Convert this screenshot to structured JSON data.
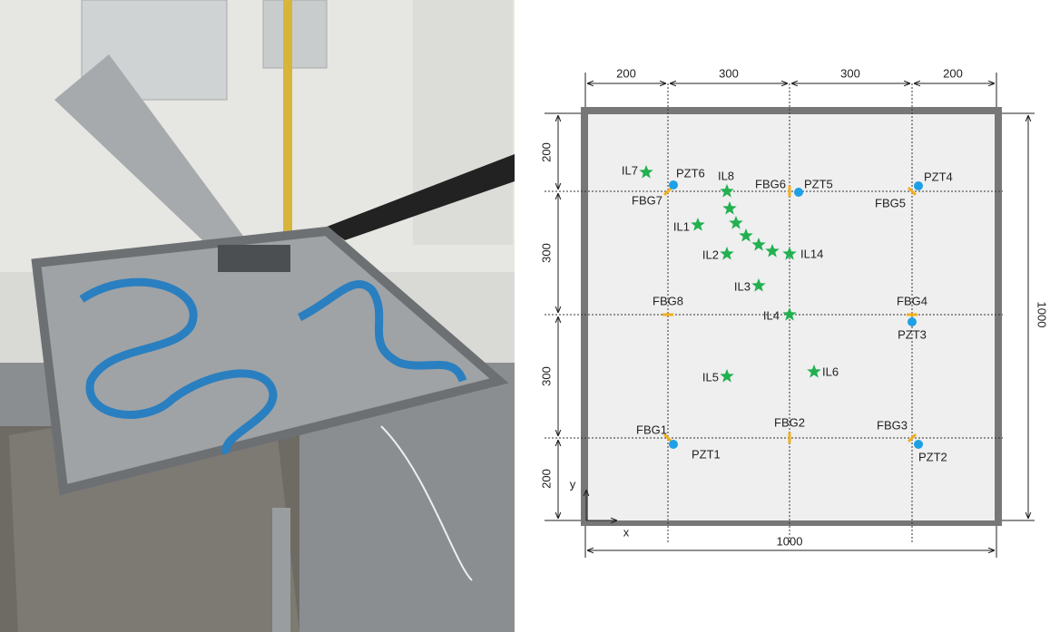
{
  "dimensions": {
    "top": [
      "200",
      "300",
      "300",
      "200"
    ],
    "left": [
      "200",
      "300",
      "300",
      "200"
    ],
    "bottom": "1000",
    "right": "1000"
  },
  "axes": {
    "x": "x",
    "y": "y"
  },
  "pzt": [
    "PZT1",
    "PZT2",
    "PZT3",
    "PZT4",
    "PZT5",
    "PZT6"
  ],
  "fbg": [
    "FBG1",
    "FBG2",
    "FBG3",
    "FBG4",
    "FBG5",
    "FBG6",
    "FBG7",
    "FBG8"
  ],
  "impacts": [
    "IL1",
    "IL2",
    "IL3",
    "IL4",
    "IL5",
    "IL6",
    "IL7",
    "IL8",
    "IL14"
  ]
}
